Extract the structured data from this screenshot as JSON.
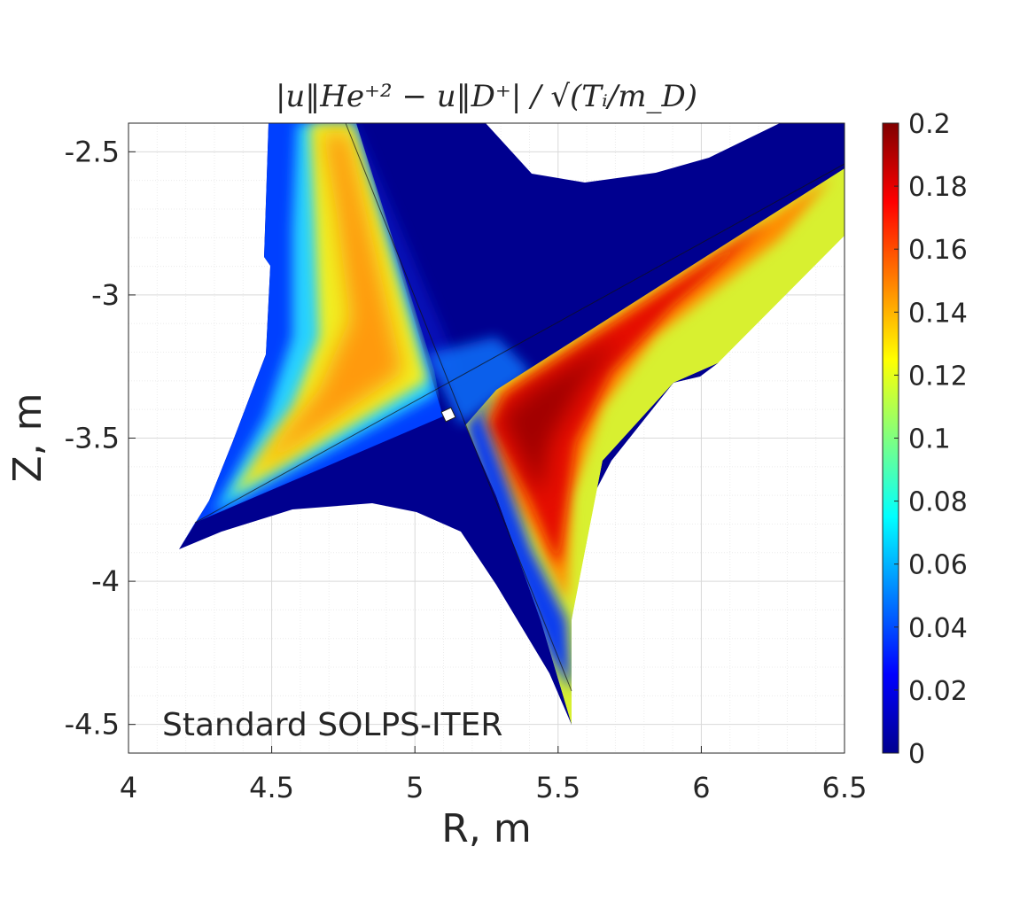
{
  "chart_data": {
    "type": "heatmap",
    "title": "|u‖He⁺² − u‖D⁺| / √(Tᵢ/m_D)",
    "xlabel": "R, m",
    "ylabel": "Z, m",
    "annotation": "Standard SOLPS-ITER",
    "xlim": [
      4,
      6.5
    ],
    "ylim": [
      -4.6,
      -2.4
    ],
    "x_ticks": [
      4,
      4.5,
      5,
      5.5,
      6,
      6.5
    ],
    "x_tick_labels": [
      "4",
      "4.5",
      "5",
      "5.5",
      "6",
      "6.5"
    ],
    "y_ticks": [
      -2.5,
      -3,
      -3.5,
      -4,
      -4.5
    ],
    "y_tick_labels": [
      "-2.5",
      "-3",
      "-3.5",
      "-4",
      "-4.5"
    ],
    "grid": true,
    "colorbar": {
      "min": 0,
      "max": 0.2,
      "colormap": "jet",
      "ticks": [
        0,
        0.02,
        0.04,
        0.06,
        0.08,
        0.1,
        0.12,
        0.14,
        0.16,
        0.18,
        0.2
      ],
      "tick_labels": [
        "0",
        "0.02",
        "0.04",
        "0.06",
        "0.08",
        "0.1",
        "0.12",
        "0.14",
        "0.16",
        "0.18",
        "0.2"
      ]
    },
    "x_point": {
      "R": 5.13,
      "Z": -3.42
    },
    "regions": [
      {
        "name": "inner-leg-peak",
        "value": 0.135
      },
      {
        "name": "outer-leg-peak",
        "value": 0.19
      },
      {
        "name": "private-flux-region",
        "value": 0.0
      },
      {
        "name": "core-region",
        "value": 0.0
      }
    ]
  }
}
